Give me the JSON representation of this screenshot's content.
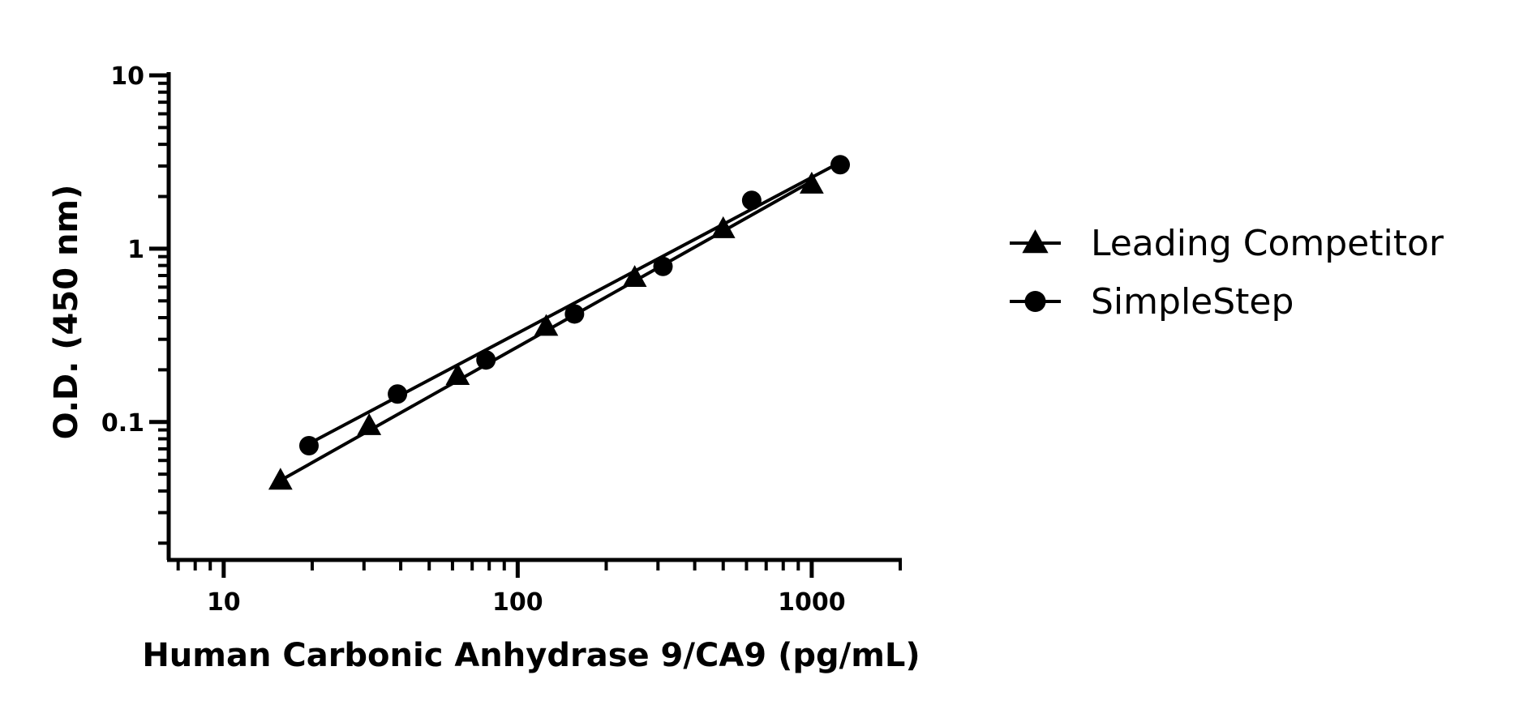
{
  "chart_data": {
    "type": "scatter",
    "title": "",
    "xlabel": "Human Carbonic Anhydrase 9/CA9 (pg/mL)",
    "ylabel": "O.D. (450 nm)",
    "xscale": "log",
    "yscale": "log",
    "xlim": [
      6.5,
      2000
    ],
    "ylim": [
      0.016,
      10
    ],
    "xticks": [
      10,
      100,
      1000
    ],
    "xtick_labels": [
      "10",
      "100",
      "1000"
    ],
    "yticks": [
      0.1,
      1,
      10
    ],
    "ytick_labels": [
      "0.1",
      "1",
      "10"
    ],
    "grid": false,
    "legend_position": "right",
    "series": [
      {
        "name": "Leading Competitor",
        "marker": "triangle",
        "x": [
          15.6,
          31.25,
          62.5,
          125,
          250,
          500,
          1000
        ],
        "y": [
          0.046,
          0.095,
          0.185,
          0.355,
          0.68,
          1.3,
          2.35
        ],
        "fit": [
          [
            15.6,
            0.046
          ],
          [
            1000,
            2.45
          ]
        ]
      },
      {
        "name": "SimpleStep",
        "marker": "circle",
        "x": [
          19.5,
          39,
          78,
          156,
          312,
          625,
          1250
        ],
        "y": [
          0.073,
          0.145,
          0.228,
          0.42,
          0.79,
          1.9,
          3.05
        ],
        "fit": [
          [
            19.5,
            0.075
          ],
          [
            1250,
            3.15
          ]
        ]
      }
    ]
  }
}
